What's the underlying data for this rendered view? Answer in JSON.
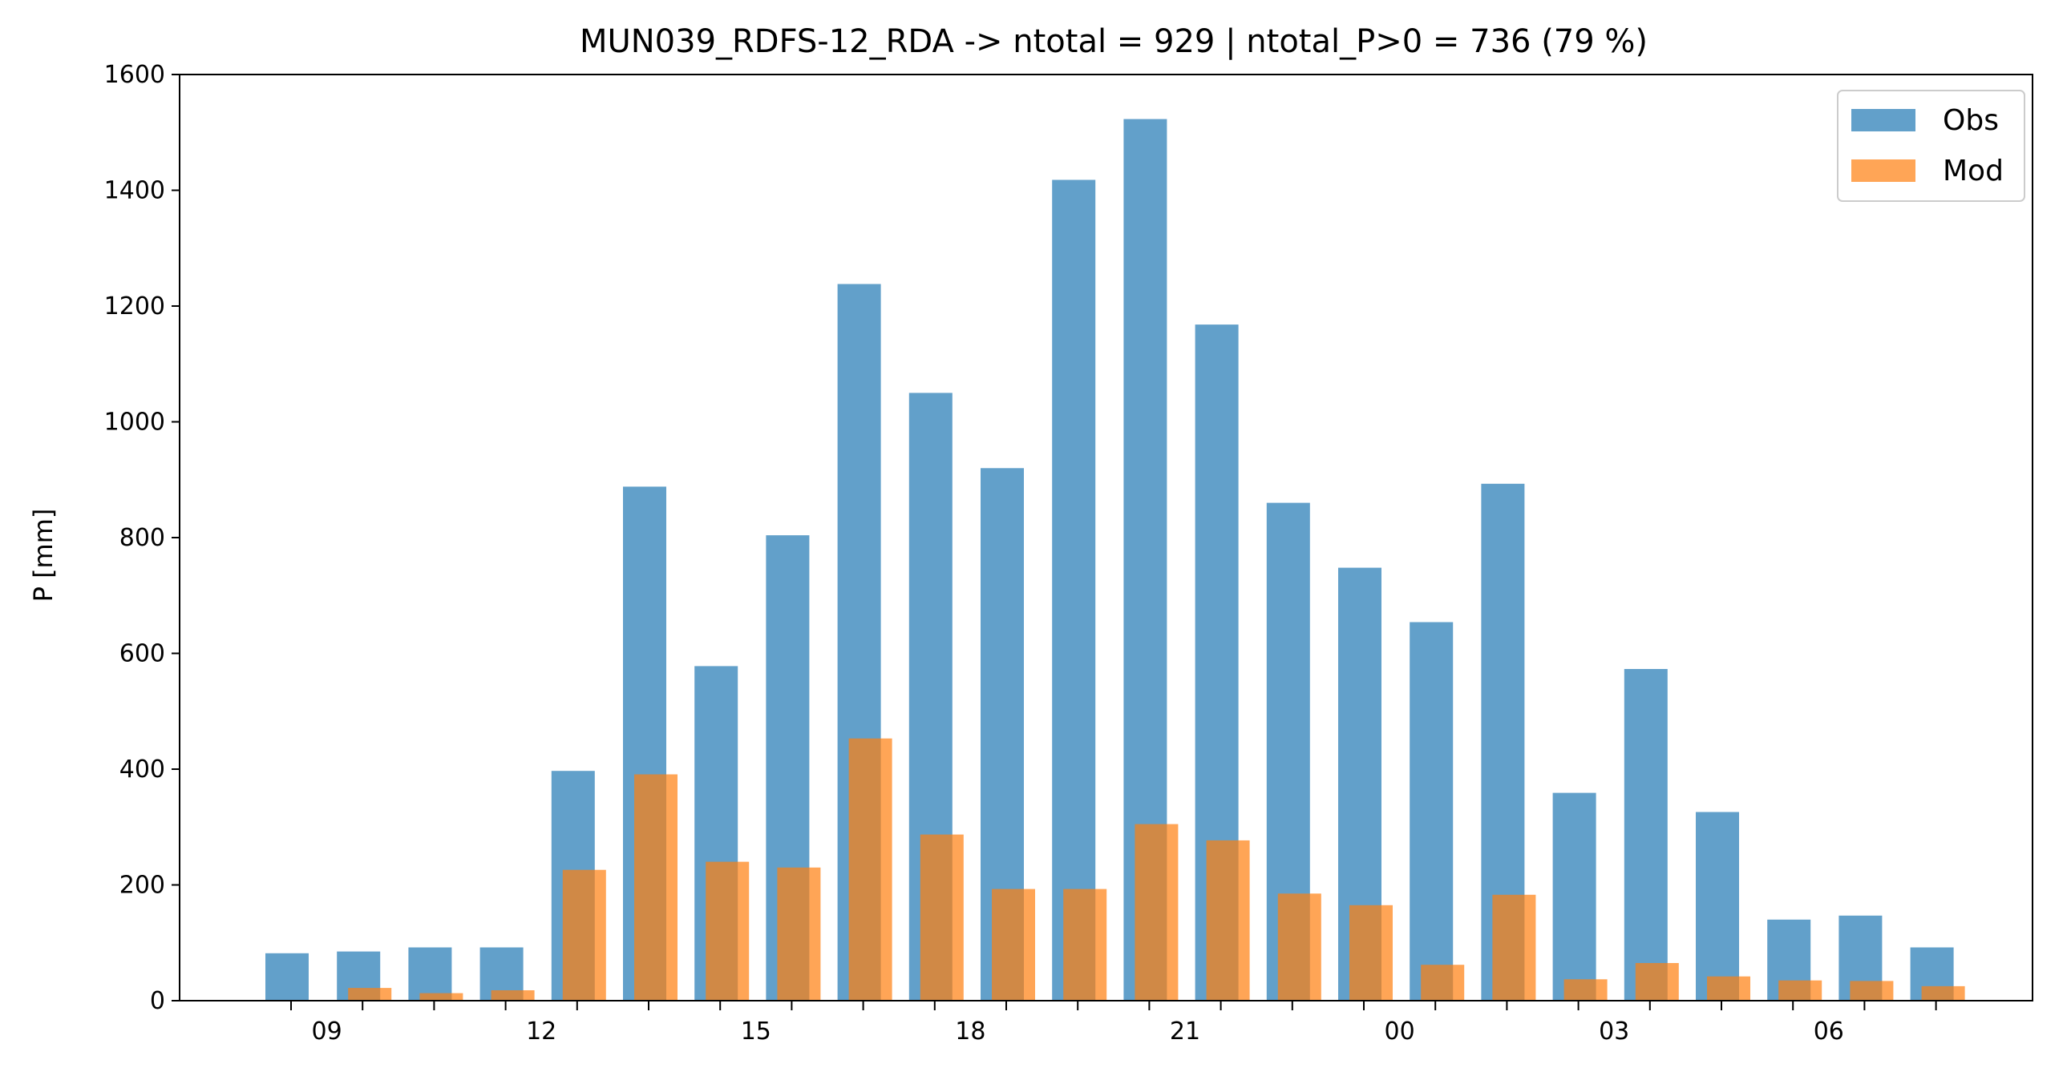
{
  "chart_data": {
    "type": "bar",
    "title": "MUN039_RDFS-12_RDA -> ntotal = 929 | ntotal_P>0 = 736 (79 %)",
    "xlabel": "",
    "ylabel": "P [mm]",
    "ylim": [
      0,
      1600
    ],
    "yticks": [
      0,
      200,
      400,
      600,
      800,
      1000,
      1200,
      1400,
      1600
    ],
    "x_hours": [
      8,
      9,
      10,
      11,
      12,
      13,
      14,
      15,
      16,
      17,
      18,
      19,
      20,
      21,
      22,
      23,
      0,
      1,
      2,
      3,
      4,
      5,
      6,
      7
    ],
    "xtick_labels": [
      "09",
      "12",
      "15",
      "18",
      "21",
      "00",
      "03",
      "06"
    ],
    "series": [
      {
        "name": "Obs",
        "color": "#1f77b4",
        "values": [
          82,
          85,
          92,
          92,
          397,
          888,
          578,
          804,
          1238,
          1050,
          920,
          1418,
          1523,
          1168,
          860,
          748,
          654,
          893,
          359,
          573,
          326,
          140,
          147,
          92
        ]
      },
      {
        "name": "Mod",
        "color": "#ff7f0e",
        "values": [
          0,
          22,
          13,
          18,
          226,
          391,
          240,
          230,
          453,
          287,
          193,
          193,
          305,
          277,
          185,
          165,
          62,
          183,
          37,
          65,
          42,
          35,
          34,
          25
        ]
      }
    ],
    "legend": {
      "position": "top-right"
    },
    "grid": false
  }
}
